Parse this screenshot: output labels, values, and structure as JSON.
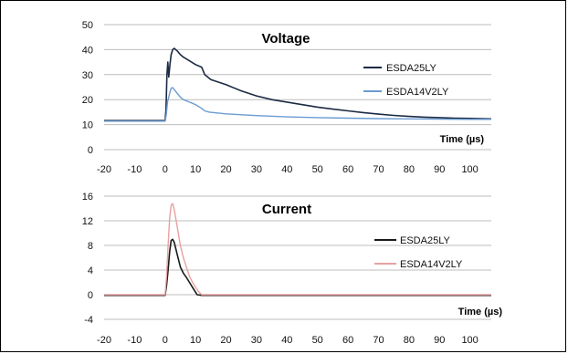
{
  "chart_data": [
    {
      "type": "line",
      "title": "Voltage",
      "xlabel": "Time (µs)",
      "ylabel": "",
      "xlim": [
        -20,
        107
      ],
      "ylim": [
        0,
        50
      ],
      "x_ticks": [
        -20,
        -10,
        0,
        10,
        20,
        30,
        40,
        50,
        60,
        70,
        80,
        90,
        100
      ],
      "y_ticks": [
        0,
        10,
        20,
        30,
        40,
        50
      ],
      "grid": "horizontal",
      "legend_position": "right",
      "series": [
        {
          "name": "ESDA25LY",
          "color": "#1c2a44",
          "points": [
            [
              -20,
              11.6
            ],
            [
              0,
              11.6
            ],
            [
              0.3,
              16
            ],
            [
              0.6,
              30
            ],
            [
              0.9,
              35
            ],
            [
              1.2,
              29
            ],
            [
              1.6,
              34
            ],
            [
              2,
              38
            ],
            [
              2.5,
              40
            ],
            [
              3,
              40.5
            ],
            [
              4,
              39.5
            ],
            [
              5,
              38
            ],
            [
              6,
              37
            ],
            [
              8,
              35.5
            ],
            [
              10,
              34
            ],
            [
              12,
              33
            ],
            [
              13,
              30
            ],
            [
              15,
              28
            ],
            [
              20,
              26
            ],
            [
              25,
              23.5
            ],
            [
              30,
              21.5
            ],
            [
              35,
              20
            ],
            [
              40,
              19
            ],
            [
              45,
              18
            ],
            [
              50,
              17
            ],
            [
              55,
              16.2
            ],
            [
              60,
              15.5
            ],
            [
              65,
              14.8
            ],
            [
              70,
              14.2
            ],
            [
              75,
              13.7
            ],
            [
              80,
              13.3
            ],
            [
              85,
              13
            ],
            [
              90,
              12.8
            ],
            [
              95,
              12.6
            ],
            [
              100,
              12.5
            ],
            [
              107,
              12.3
            ]
          ]
        },
        {
          "name": "ESDA14V2LY",
          "color": "#6a9bd1",
          "points": [
            [
              -20,
              11.4
            ],
            [
              0,
              11.4
            ],
            [
              0.4,
              14
            ],
            [
              0.8,
              19
            ],
            [
              1.2,
              21
            ],
            [
              1.6,
              23
            ],
            [
              2,
              24.5
            ],
            [
              2.5,
              24.8
            ],
            [
              3,
              24
            ],
            [
              4,
              22.5
            ],
            [
              5,
              21
            ],
            [
              6,
              20
            ],
            [
              8,
              19
            ],
            [
              10,
              18
            ],
            [
              12,
              16.5
            ],
            [
              13,
              15.5
            ],
            [
              14.5,
              15
            ],
            [
              20,
              14.3
            ],
            [
              30,
              13.6
            ],
            [
              40,
              13.1
            ],
            [
              50,
              12.8
            ],
            [
              60,
              12.6
            ],
            [
              70,
              12.4
            ],
            [
              80,
              12.3
            ],
            [
              90,
              12.2
            ],
            [
              100,
              12.1
            ],
            [
              107,
              12.1
            ]
          ]
        }
      ]
    },
    {
      "type": "line",
      "title": "Current",
      "xlabel": "Time (µs)",
      "ylabel": "",
      "xlim": [
        -20,
        107
      ],
      "ylim": [
        -4,
        16
      ],
      "x_ticks": [
        -20,
        -10,
        0,
        10,
        20,
        30,
        40,
        50,
        60,
        70,
        80,
        90,
        100
      ],
      "y_ticks": [
        -4,
        0,
        4,
        8,
        12,
        16
      ],
      "grid": "horizontal",
      "legend_position": "right",
      "series": [
        {
          "name": "ESDA25LY",
          "color": "#1a1a1a",
          "points": [
            [
              -20,
              -0.1
            ],
            [
              0,
              -0.1
            ],
            [
              0.5,
              1.5
            ],
            [
              1,
              4
            ],
            [
              1.5,
              7
            ],
            [
              2,
              8.8
            ],
            [
              2.5,
              9
            ],
            [
              3,
              8.5
            ],
            [
              4,
              6.5
            ],
            [
              5,
              4.5
            ],
            [
              6,
              3.5
            ],
            [
              7,
              2.8
            ],
            [
              8,
              2
            ],
            [
              9,
              1.2
            ],
            [
              10,
              0.4
            ],
            [
              10.5,
              0
            ],
            [
              12,
              -0.1
            ],
            [
              107,
              -0.1
            ]
          ]
        },
        {
          "name": "ESDA14V2LY",
          "color": "#e8a0a0",
          "points": [
            [
              -20,
              0
            ],
            [
              0,
              0
            ],
            [
              0.5,
              3
            ],
            [
              1,
              8
            ],
            [
              1.5,
              12.5
            ],
            [
              2,
              14.5
            ],
            [
              2.5,
              14.8
            ],
            [
              3,
              13.8
            ],
            [
              4,
              11
            ],
            [
              5,
              8
            ],
            [
              6,
              6
            ],
            [
              7,
              4.5
            ],
            [
              8,
              3
            ],
            [
              9,
              2
            ],
            [
              10,
              1.2
            ],
            [
              11,
              0.5
            ],
            [
              12,
              0
            ],
            [
              107,
              0
            ]
          ]
        }
      ]
    }
  ]
}
